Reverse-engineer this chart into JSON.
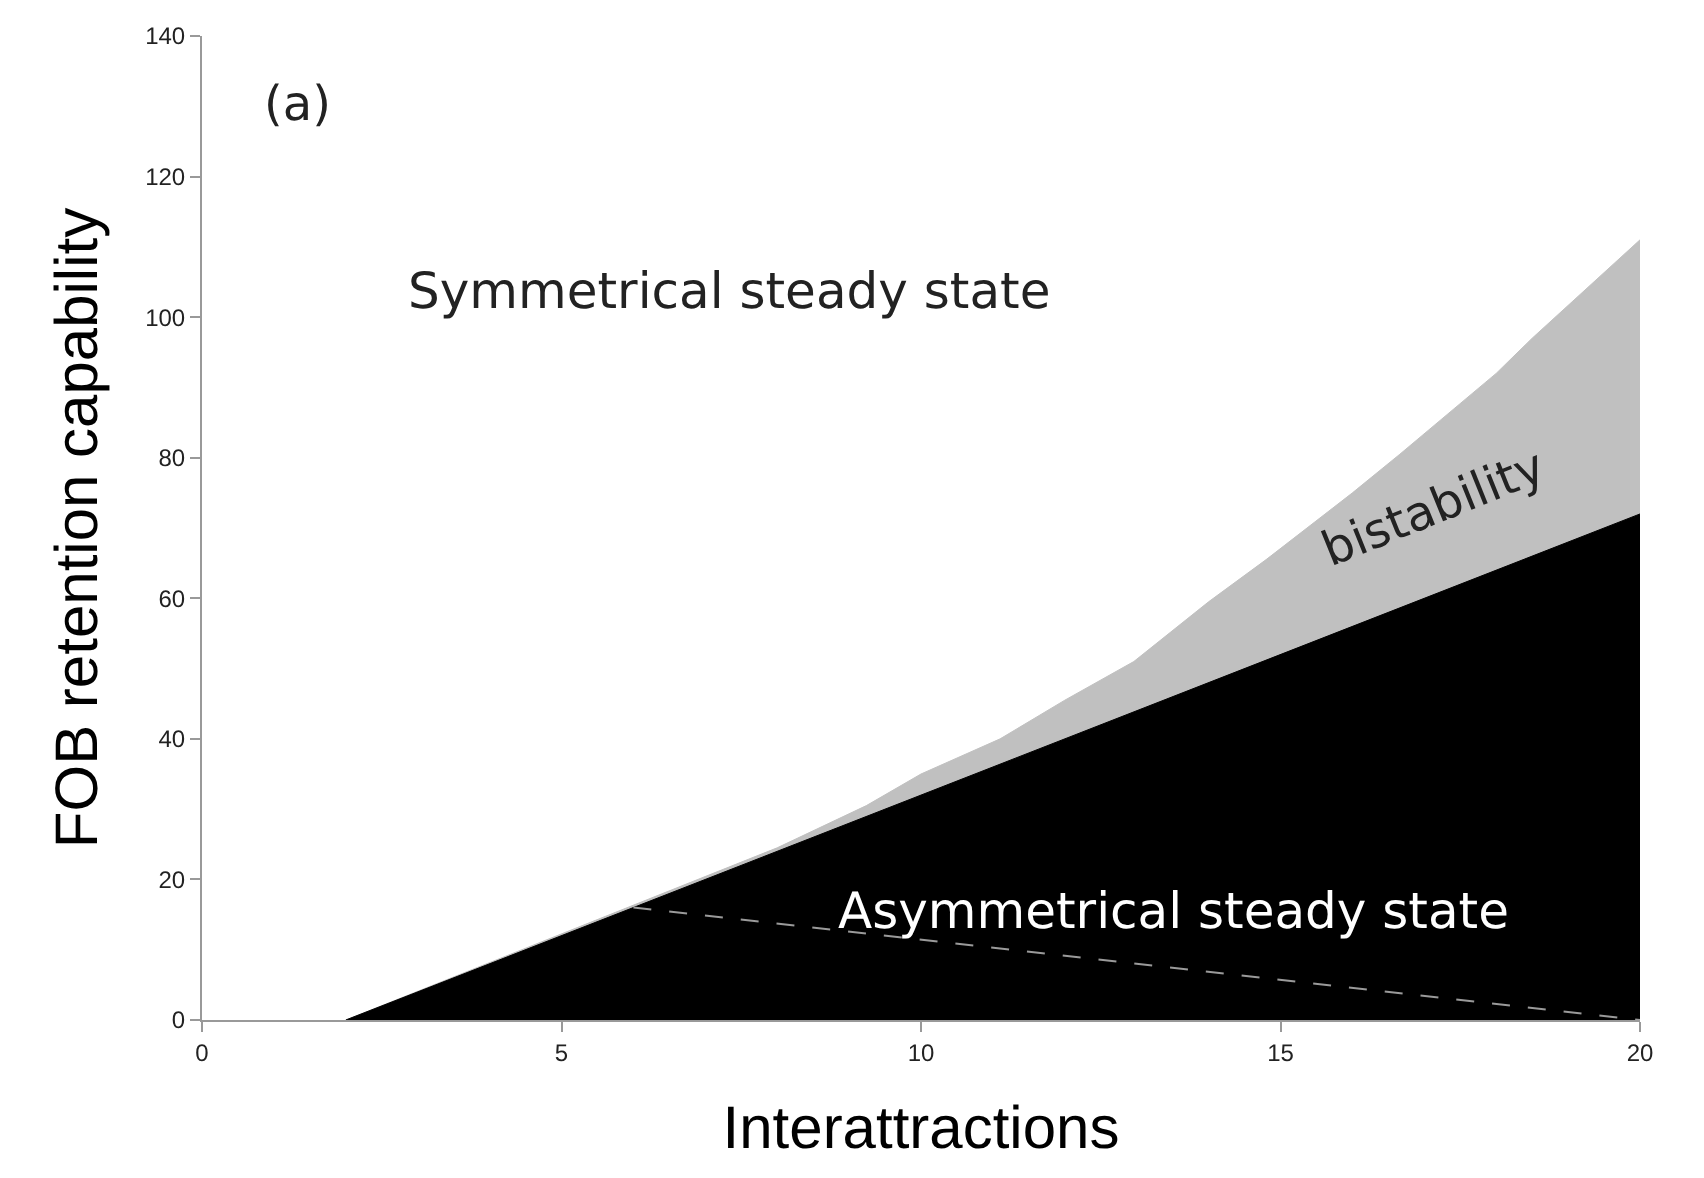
{
  "chart_data": {
    "type": "area",
    "xlabel": "Interattractions",
    "ylabel": "FOB retention capability",
    "annotations": [
      "(a)",
      "Symmetrical steady state",
      "bistability",
      "Asymmetrical steady state"
    ],
    "series": [
      {
        "color": "#c0c0c0",
        "x": [
          2,
          8,
          9.24,
          10,
          11.1,
          12,
          12.96,
          14,
          14.8,
          16,
          16.66,
          18,
          18.5,
          20
        ],
        "values": [
          0,
          24.5,
          30.5,
          35,
          40,
          45.5,
          51,
          59.5,
          65.5,
          75,
          80.5,
          92,
          97,
          111
        ]
      },
      {
        "color": "#000000",
        "x": [
          2,
          20
        ],
        "values": [
          0,
          72
        ]
      },
      {
        "type": "line",
        "color": "#9a9a9a",
        "line_style": "dashed",
        "x": [
          6,
          20
        ],
        "values": [
          16,
          0
        ]
      }
    ],
    "xlim": [
      0,
      20
    ],
    "xticks": [
      0,
      5,
      10,
      15,
      20
    ],
    "ylim": [
      0,
      140
    ],
    "yticks": [
      0,
      20,
      40,
      60,
      80,
      100,
      120,
      140
    ],
    "grid": false,
    "legend": false
  }
}
